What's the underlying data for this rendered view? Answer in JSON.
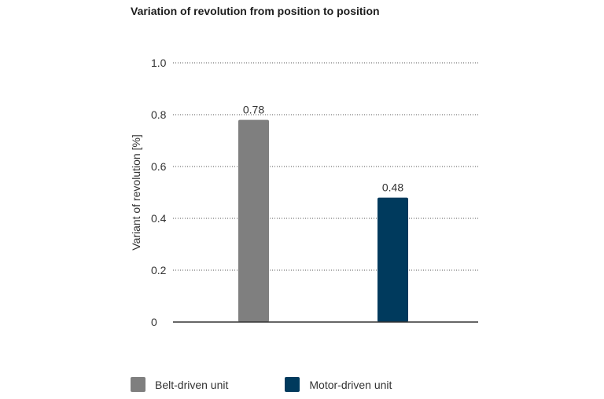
{
  "chart_data": {
    "type": "bar",
    "title": "Variation of revolution from position to position",
    "ylabel": "Variant of revolution [%]",
    "xlabel": "",
    "ylim": [
      0,
      1.0
    ],
    "yticks": [
      0,
      0.2,
      0.4,
      0.6,
      0.8,
      1.0
    ],
    "ytick_labels": [
      "0",
      "0.2",
      "0.4",
      "0.6",
      "0.8",
      "1.0"
    ],
    "grid": true,
    "legend_position": "bottom",
    "categories": [
      "Belt-driven unit",
      "Motor-driven unit"
    ],
    "values": [
      0.78,
      0.48
    ],
    "value_labels": [
      "0.78",
      "0.48"
    ],
    "colors": [
      "#7f7f7f",
      "#003a5d"
    ]
  }
}
